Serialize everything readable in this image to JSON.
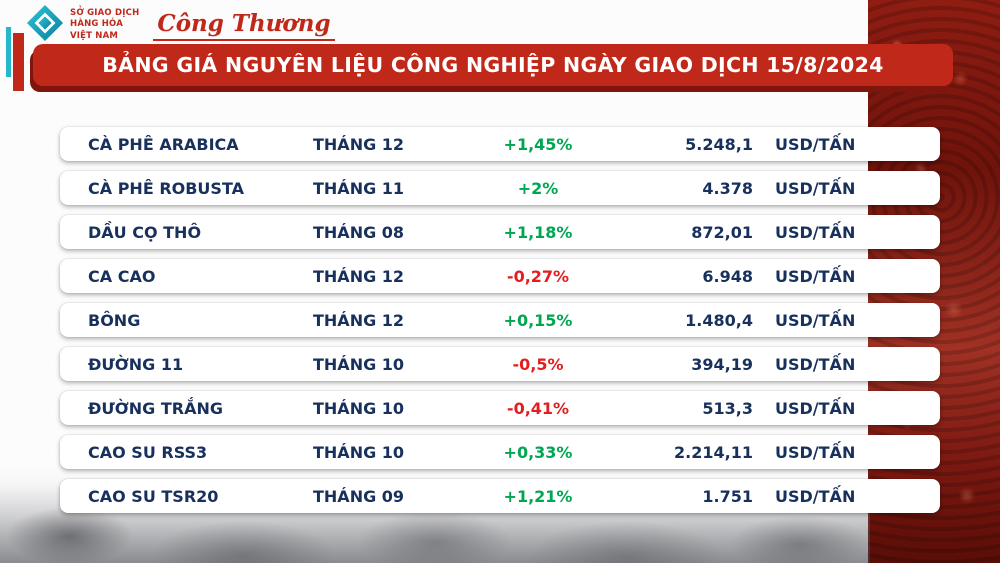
{
  "logo": {
    "exchange_lines": [
      "SỞ GIAO DỊCH",
      "HÀNG HÓA",
      "VIỆT NAM"
    ],
    "brand": "Công Thương"
  },
  "banner": {
    "title": "BẢNG GIÁ NGUYÊN LIỆU CÔNG NGHIỆP NGÀY GIAO DỊCH 15/8/2024"
  },
  "table": {
    "rows": [
      {
        "name": "CÀ PHÊ ARABICA",
        "month": "THÁNG 12",
        "change": "+1,45%",
        "direction": "up",
        "price": "5.248,1",
        "unit": "USD/TẤN"
      },
      {
        "name": "CÀ PHÊ ROBUSTA",
        "month": "THÁNG 11",
        "change": "+2%",
        "direction": "up",
        "price": "4.378",
        "unit": "USD/TẤN"
      },
      {
        "name": "DẦU CỌ THÔ",
        "month": "THÁNG 08",
        "change": "+1,18%",
        "direction": "up",
        "price": "872,01",
        "unit": "USD/TẤN"
      },
      {
        "name": "CA CAO",
        "month": "THÁNG 12",
        "change": "-0,27%",
        "direction": "down",
        "price": "6.948",
        "unit": "USD/TẤN"
      },
      {
        "name": "BÔNG",
        "month": "THÁNG 12",
        "change": "+0,15%",
        "direction": "up",
        "price": "1.480,4",
        "unit": "USD/TẤN"
      },
      {
        "name": "ĐƯỜNG 11",
        "month": "THÁNG 10",
        "change": "-0,5%",
        "direction": "down",
        "price": "394,19",
        "unit": "USD/TẤN"
      },
      {
        "name": "ĐƯỜNG TRẮNG",
        "month": "THÁNG 10",
        "change": "-0,41%",
        "direction": "down",
        "price": "513,3",
        "unit": "USD/TẤN"
      },
      {
        "name": "CAO SU RSS3",
        "month": "THÁNG 10",
        "change": "+0,33%",
        "direction": "up",
        "price": "2.214,11",
        "unit": "USD/TẤN"
      },
      {
        "name": "CAO SU TSR20",
        "month": "THÁNG 09",
        "change": "+1,21%",
        "direction": "up",
        "price": "1.751",
        "unit": "USD/TẤN"
      }
    ]
  },
  "chart_data": {
    "type": "table",
    "title": "BẢNG GIÁ NGUYÊN LIỆU CÔNG NGHIỆP NGÀY GIAO DỊCH 15/8/2024",
    "commodities": [
      "CÀ PHÊ ARABICA",
      "CÀ PHÊ ROBUSTA",
      "DẦU CỌ THÔ",
      "CA CAO",
      "BÔNG",
      "ĐƯỜNG 11",
      "ĐƯỜNG TRẮNG",
      "CAO SU RSS3",
      "CAO SU TSR20"
    ],
    "contract_months": [
      "THÁNG 12",
      "THÁNG 11",
      "THÁNG 08",
      "THÁNG 12",
      "THÁNG 12",
      "THÁNG 10",
      "THÁNG 10",
      "THÁNG 10",
      "THÁNG 09"
    ],
    "change_pct": [
      1.45,
      2,
      1.18,
      -0.27,
      0.15,
      -0.5,
      -0.41,
      0.33,
      1.21
    ],
    "prices": [
      5248.1,
      4378,
      872.01,
      6948,
      1480.4,
      394.19,
      513.3,
      2214.11,
      1751
    ],
    "unit": "USD/TẤN"
  },
  "colors": {
    "banner_red": "#c0281a",
    "positive_green": "#00a651",
    "negative_red": "#e21e1e",
    "text_navy": "#18305c"
  }
}
